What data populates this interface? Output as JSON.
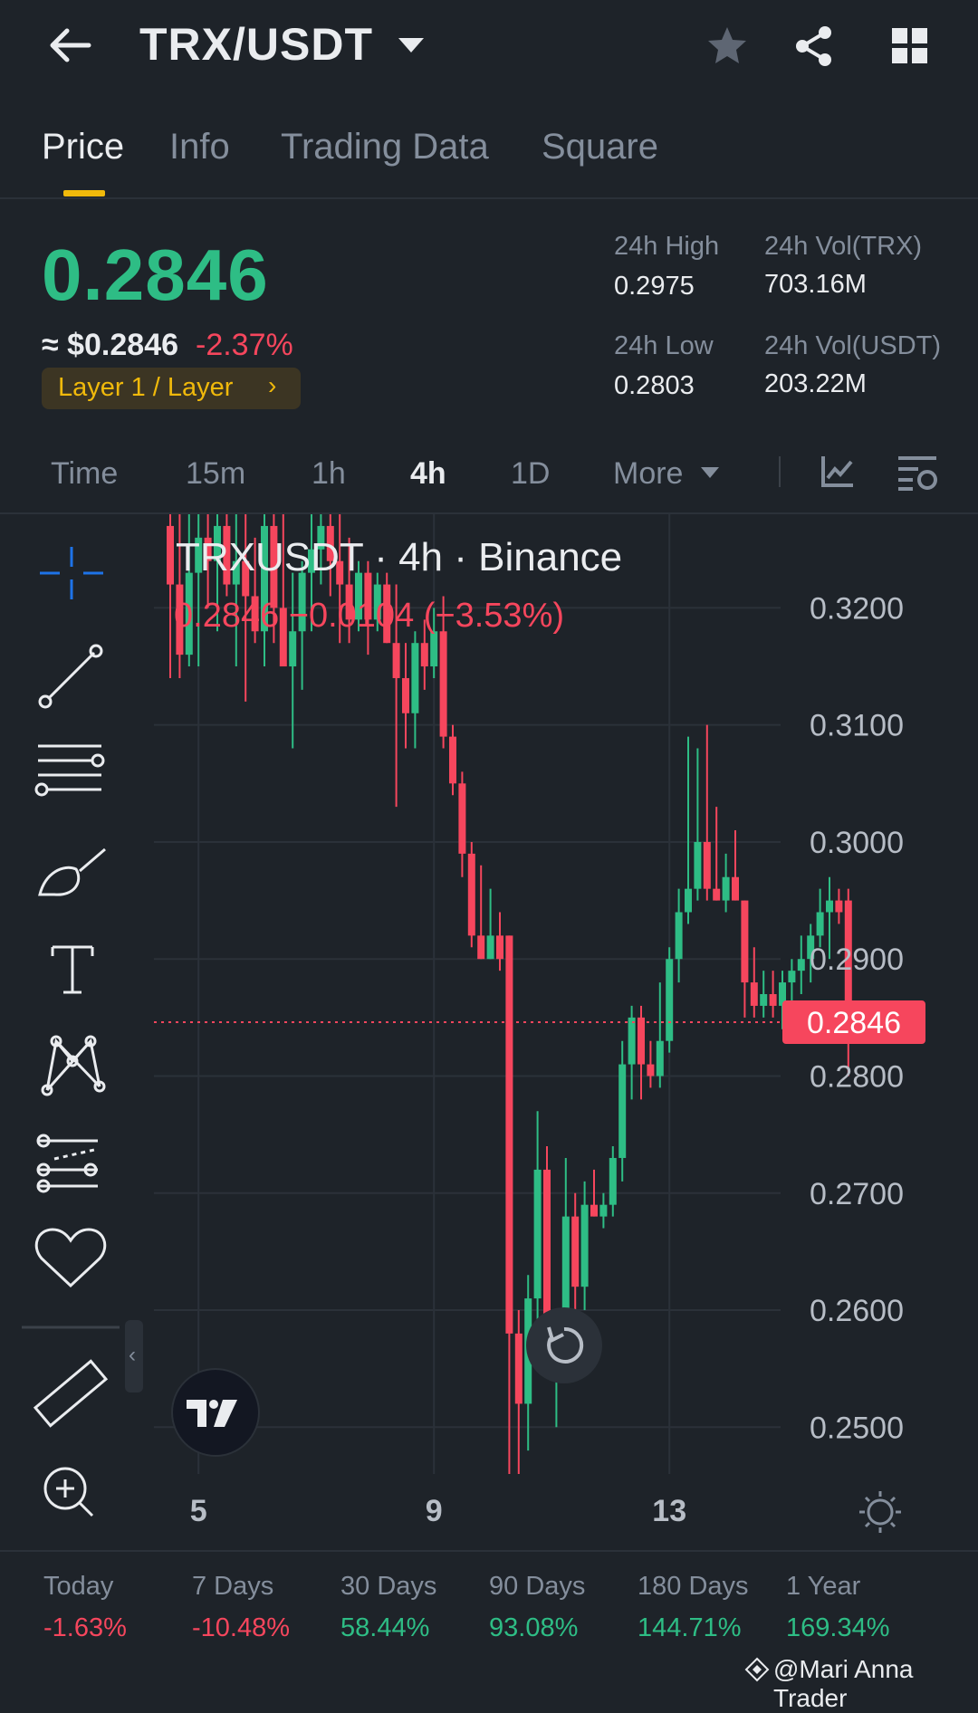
{
  "header": {
    "pair": "TRX/USDT",
    "icons": [
      "back-arrow-icon",
      "caret-down-icon",
      "star-icon",
      "share-icon",
      "grid-icon"
    ]
  },
  "tabs": [
    "Price",
    "Info",
    "Trading Data",
    "Square"
  ],
  "active_tab": "Price",
  "price": {
    "last": "0.2846",
    "usd": "≈ $0.2846",
    "change": "-2.37%",
    "tag": "Layer 1 / Layer",
    "tag_arrow": "›"
  },
  "stats": {
    "high_label": "24h High",
    "high": "0.2975",
    "low_label": "24h Low",
    "low": "0.2803",
    "vol_base_label": "24h Vol(TRX)",
    "vol_base": "703.16M",
    "vol_quote_label": "24h Vol(USDT)",
    "vol_quote": "203.22M"
  },
  "intervals": {
    "time": "Time",
    "m15": "15m",
    "h1": "1h",
    "h4": "4h",
    "d1": "1D",
    "more": "More",
    "active": "4h"
  },
  "colors": {
    "up": "#2ebd85",
    "down": "#f6465d",
    "accent": "#f0b90b",
    "bg": "#1e2329",
    "crosshair": "#1e73e8"
  },
  "chart_data": {
    "type": "candlestick",
    "title": "TRXUSDT · 4h · Binance",
    "legend_change": "0.2846 −0.0104 (−3.53%)",
    "current_price_label": "0.2846",
    "current_price": 0.2846,
    "y_ticks": [
      "0.3200",
      "0.3100",
      "0.3000",
      "0.2900",
      "0.2800",
      "0.2700",
      "0.2600",
      "0.2500"
    ],
    "ylim": [
      0.246,
      0.328
    ],
    "x_ticks": [
      "5",
      "9",
      "13"
    ],
    "x_tick_candle_index": [
      3,
      28,
      53
    ],
    "candles": [
      {
        "o": 0.327,
        "h": 0.329,
        "l": 0.314,
        "c": 0.322
      },
      {
        "o": 0.322,
        "h": 0.328,
        "l": 0.314,
        "c": 0.316
      },
      {
        "o": 0.316,
        "h": 0.328,
        "l": 0.315,
        "c": 0.323
      },
      {
        "o": 0.323,
        "h": 0.329,
        "l": 0.315,
        "c": 0.326
      },
      {
        "o": 0.326,
        "h": 0.329,
        "l": 0.32,
        "c": 0.324
      },
      {
        "o": 0.324,
        "h": 0.329,
        "l": 0.318,
        "c": 0.327
      },
      {
        "o": 0.327,
        "h": 0.329,
        "l": 0.321,
        "c": 0.322
      },
      {
        "o": 0.322,
        "h": 0.328,
        "l": 0.315,
        "c": 0.324
      },
      {
        "o": 0.324,
        "h": 0.328,
        "l": 0.312,
        "c": 0.321
      },
      {
        "o": 0.321,
        "h": 0.326,
        "l": 0.317,
        "c": 0.318
      },
      {
        "o": 0.318,
        "h": 0.329,
        "l": 0.315,
        "c": 0.327
      },
      {
        "o": 0.327,
        "h": 0.329,
        "l": 0.317,
        "c": 0.32
      },
      {
        "o": 0.32,
        "h": 0.328,
        "l": 0.315,
        "c": 0.315
      },
      {
        "o": 0.315,
        "h": 0.323,
        "l": 0.308,
        "c": 0.318
      },
      {
        "o": 0.318,
        "h": 0.324,
        "l": 0.313,
        "c": 0.323
      },
      {
        "o": 0.323,
        "h": 0.329,
        "l": 0.318,
        "c": 0.325
      },
      {
        "o": 0.325,
        "h": 0.329,
        "l": 0.322,
        "c": 0.327
      },
      {
        "o": 0.327,
        "h": 0.329,
        "l": 0.321,
        "c": 0.324
      },
      {
        "o": 0.324,
        "h": 0.328,
        "l": 0.317,
        "c": 0.322
      },
      {
        "o": 0.322,
        "h": 0.326,
        "l": 0.317,
        "c": 0.319
      },
      {
        "o": 0.319,
        "h": 0.324,
        "l": 0.318,
        "c": 0.323
      },
      {
        "o": 0.323,
        "h": 0.324,
        "l": 0.316,
        "c": 0.319
      },
      {
        "o": 0.319,
        "h": 0.323,
        "l": 0.318,
        "c": 0.322
      },
      {
        "o": 0.322,
        "h": 0.323,
        "l": 0.317,
        "c": 0.317
      },
      {
        "o": 0.317,
        "h": 0.322,
        "l": 0.303,
        "c": 0.314
      },
      {
        "o": 0.314,
        "h": 0.317,
        "l": 0.308,
        "c": 0.311
      },
      {
        "o": 0.311,
        "h": 0.318,
        "l": 0.308,
        "c": 0.317
      },
      {
        "o": 0.317,
        "h": 0.319,
        "l": 0.313,
        "c": 0.315
      },
      {
        "o": 0.315,
        "h": 0.32,
        "l": 0.314,
        "c": 0.318
      },
      {
        "o": 0.318,
        "h": 0.321,
        "l": 0.308,
        "c": 0.309
      },
      {
        "o": 0.309,
        "h": 0.31,
        "l": 0.304,
        "c": 0.305
      },
      {
        "o": 0.305,
        "h": 0.306,
        "l": 0.297,
        "c": 0.299
      },
      {
        "o": 0.299,
        "h": 0.3,
        "l": 0.291,
        "c": 0.292
      },
      {
        "o": 0.292,
        "h": 0.298,
        "l": 0.29,
        "c": 0.29
      },
      {
        "o": 0.29,
        "h": 0.296,
        "l": 0.29,
        "c": 0.292
      },
      {
        "o": 0.292,
        "h": 0.294,
        "l": 0.289,
        "c": 0.29
      },
      {
        "o": 0.292,
        "h": 0.292,
        "l": 0.246,
        "c": 0.258
      },
      {
        "o": 0.258,
        "h": 0.26,
        "l": 0.246,
        "c": 0.252
      },
      {
        "o": 0.252,
        "h": 0.263,
        "l": 0.248,
        "c": 0.261
      },
      {
        "o": 0.261,
        "h": 0.277,
        "l": 0.259,
        "c": 0.272
      },
      {
        "o": 0.272,
        "h": 0.274,
        "l": 0.256,
        "c": 0.257
      },
      {
        "o": 0.257,
        "h": 0.26,
        "l": 0.25,
        "c": 0.258
      },
      {
        "o": 0.258,
        "h": 0.273,
        "l": 0.257,
        "c": 0.268
      },
      {
        "o": 0.268,
        "h": 0.27,
        "l": 0.26,
        "c": 0.262
      },
      {
        "o": 0.262,
        "h": 0.271,
        "l": 0.26,
        "c": 0.269
      },
      {
        "o": 0.269,
        "h": 0.272,
        "l": 0.268,
        "c": 0.268
      },
      {
        "o": 0.268,
        "h": 0.27,
        "l": 0.267,
        "c": 0.269
      },
      {
        "o": 0.269,
        "h": 0.274,
        "l": 0.268,
        "c": 0.273
      },
      {
        "o": 0.273,
        "h": 0.283,
        "l": 0.271,
        "c": 0.281
      },
      {
        "o": 0.281,
        "h": 0.286,
        "l": 0.278,
        "c": 0.285
      },
      {
        "o": 0.285,
        "h": 0.286,
        "l": 0.278,
        "c": 0.281
      },
      {
        "o": 0.281,
        "h": 0.283,
        "l": 0.279,
        "c": 0.28
      },
      {
        "o": 0.28,
        "h": 0.288,
        "l": 0.279,
        "c": 0.283
      },
      {
        "o": 0.283,
        "h": 0.291,
        "l": 0.282,
        "c": 0.29
      },
      {
        "o": 0.29,
        "h": 0.296,
        "l": 0.288,
        "c": 0.294
      },
      {
        "o": 0.294,
        "h": 0.309,
        "l": 0.293,
        "c": 0.296
      },
      {
        "o": 0.296,
        "h": 0.308,
        "l": 0.295,
        "c": 0.3
      },
      {
        "o": 0.3,
        "h": 0.31,
        "l": 0.295,
        "c": 0.296
      },
      {
        "o": 0.296,
        "h": 0.303,
        "l": 0.295,
        "c": 0.295
      },
      {
        "o": 0.295,
        "h": 0.299,
        "l": 0.294,
        "c": 0.297
      },
      {
        "o": 0.297,
        "h": 0.301,
        "l": 0.295,
        "c": 0.295
      },
      {
        "o": 0.295,
        "h": 0.295,
        "l": 0.285,
        "c": 0.288
      },
      {
        "o": 0.288,
        "h": 0.291,
        "l": 0.285,
        "c": 0.286
      },
      {
        "o": 0.286,
        "h": 0.289,
        "l": 0.285,
        "c": 0.287
      },
      {
        "o": 0.287,
        "h": 0.289,
        "l": 0.285,
        "c": 0.286
      },
      {
        "o": 0.286,
        "h": 0.289,
        "l": 0.284,
        "c": 0.288
      },
      {
        "o": 0.288,
        "h": 0.29,
        "l": 0.285,
        "c": 0.289
      },
      {
        "o": 0.289,
        "h": 0.292,
        "l": 0.287,
        "c": 0.29
      },
      {
        "o": 0.29,
        "h": 0.293,
        "l": 0.288,
        "c": 0.292
      },
      {
        "o": 0.292,
        "h": 0.296,
        "l": 0.291,
        "c": 0.294
      },
      {
        "o": 0.294,
        "h": 0.297,
        "l": 0.29,
        "c": 0.295
      },
      {
        "o": 0.295,
        "h": 0.296,
        "l": 0.293,
        "c": 0.294
      },
      {
        "o": 0.295,
        "h": 0.296,
        "l": 0.28,
        "c": 0.2846
      }
    ]
  },
  "drawing_tools": [
    "crosshair-icon",
    "trend-line-icon",
    "horizontal-lines-icon",
    "brush-icon",
    "text-icon",
    "pattern-icon",
    "fib-lines-icon",
    "heart-icon",
    "ruler-icon",
    "zoom-in-icon"
  ],
  "performance": [
    {
      "label": "Today",
      "value": "-1.63%",
      "dir": "down"
    },
    {
      "label": "7 Days",
      "value": "-10.48%",
      "dir": "down"
    },
    {
      "label": "30 Days",
      "value": "58.44%",
      "dir": "up"
    },
    {
      "label": "90 Days",
      "value": "93.08%",
      "dir": "up"
    },
    {
      "label": "180 Days",
      "value": "144.71%",
      "dir": "up"
    },
    {
      "label": "1 Year",
      "value": "169.34%",
      "dir": "up"
    }
  ],
  "watermark": "@Mari Anna Trader"
}
